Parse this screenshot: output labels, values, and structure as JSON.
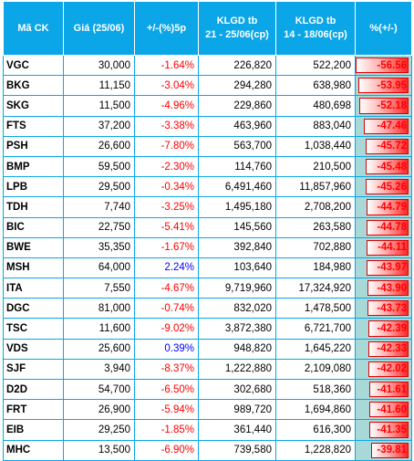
{
  "table": {
    "headers": {
      "symbol": "Mã CK",
      "price": "Giá (25/06)",
      "change": "+/-(%)5p",
      "vol_recent": [
        "KLGD tb",
        "21 - 25/06(cp)"
      ],
      "vol_prior": [
        "KLGD tb",
        "14 - 18/06(cp)"
      ],
      "pct": "%(+/-)"
    },
    "colors": {
      "header_bg": "#0aa6e8",
      "negative": "#ff0000",
      "positive": "#0000ff",
      "pct_column_bg": "#a9d8d8"
    },
    "rows": [
      {
        "sym": "VGC",
        "price": "30,000",
        "chg": "-1.64%",
        "v1": "226,820",
        "v2": "522,200",
        "pct": "-56.56",
        "pct_value": -56.56
      },
      {
        "sym": "BKG",
        "price": "11,150",
        "chg": "-3.04%",
        "v1": "294,280",
        "v2": "638,980",
        "pct": "-53.95",
        "pct_value": -53.95
      },
      {
        "sym": "SKG",
        "price": "11,500",
        "chg": "-4.96%",
        "v1": "229,860",
        "v2": "480,698",
        "pct": "-52.18",
        "pct_value": -52.18
      },
      {
        "sym": "FTS",
        "price": "37,200",
        "chg": "-3.38%",
        "v1": "463,960",
        "v2": "883,040",
        "pct": "-47.46",
        "pct_value": -47.46
      },
      {
        "sym": "PSH",
        "price": "26,600",
        "chg": "-7.80%",
        "v1": "563,700",
        "v2": "1,038,440",
        "pct": "-45.72",
        "pct_value": -45.72
      },
      {
        "sym": "BMP",
        "price": "59,500",
        "chg": "-2.30%",
        "v1": "114,760",
        "v2": "210,500",
        "pct": "-45.48",
        "pct_value": -45.48
      },
      {
        "sym": "LPB",
        "price": "29,500",
        "chg": "-0.34%",
        "v1": "6,491,460",
        "v2": "11,857,960",
        "pct": "-45.26",
        "pct_value": -45.26
      },
      {
        "sym": "TDH",
        "price": "7,740",
        "chg": "-3.25%",
        "v1": "1,495,180",
        "v2": "2,708,200",
        "pct": "-44.79",
        "pct_value": -44.79
      },
      {
        "sym": "BIC",
        "price": "22,750",
        "chg": "-5.41%",
        "v1": "145,560",
        "v2": "263,580",
        "pct": "-44.78",
        "pct_value": -44.78
      },
      {
        "sym": "BWE",
        "price": "35,350",
        "chg": "-1.67%",
        "v1": "392,840",
        "v2": "702,880",
        "pct": "-44.11",
        "pct_value": -44.11
      },
      {
        "sym": "MSH",
        "price": "64,000",
        "chg": "2.24%",
        "v1": "103,640",
        "v2": "184,980",
        "pct": "-43.97",
        "pct_value": -43.97
      },
      {
        "sym": "ITA",
        "price": "7,550",
        "chg": "-4.67%",
        "v1": "9,719,960",
        "v2": "17,324,920",
        "pct": "-43.90",
        "pct_value": -43.9
      },
      {
        "sym": "DGC",
        "price": "81,000",
        "chg": "-0.74%",
        "v1": "832,020",
        "v2": "1,478,500",
        "pct": "-43.73",
        "pct_value": -43.73
      },
      {
        "sym": "TSC",
        "price": "11,600",
        "chg": "-9.02%",
        "v1": "3,872,380",
        "v2": "6,721,700",
        "pct": "-42.39",
        "pct_value": -42.39
      },
      {
        "sym": "VDS",
        "price": "25,600",
        "chg": "0.39%",
        "v1": "948,820",
        "v2": "1,645,220",
        "pct": "-42.33",
        "pct_value": -42.33
      },
      {
        "sym": "SJF",
        "price": "3,940",
        "chg": "-8.37%",
        "v1": "1,222,880",
        "v2": "2,109,080",
        "pct": "-42.02",
        "pct_value": -42.02
      },
      {
        "sym": "D2D",
        "price": "54,700",
        "chg": "-6.50%",
        "v1": "302,680",
        "v2": "518,360",
        "pct": "-41.61",
        "pct_value": -41.61
      },
      {
        "sym": "FRT",
        "price": "26,900",
        "chg": "-5.94%",
        "v1": "989,720",
        "v2": "1,694,860",
        "pct": "-41.60",
        "pct_value": -41.6
      },
      {
        "sym": "EIB",
        "price": "29,250",
        "chg": "-1.85%",
        "v1": "361,440",
        "v2": "616,300",
        "pct": "-41.35",
        "pct_value": -41.35
      },
      {
        "sym": "MHC",
        "price": "13,500",
        "chg": "-6.90%",
        "v1": "739,580",
        "v2": "1,228,820",
        "pct": "-39.81",
        "pct_value": -39.81
      }
    ]
  }
}
